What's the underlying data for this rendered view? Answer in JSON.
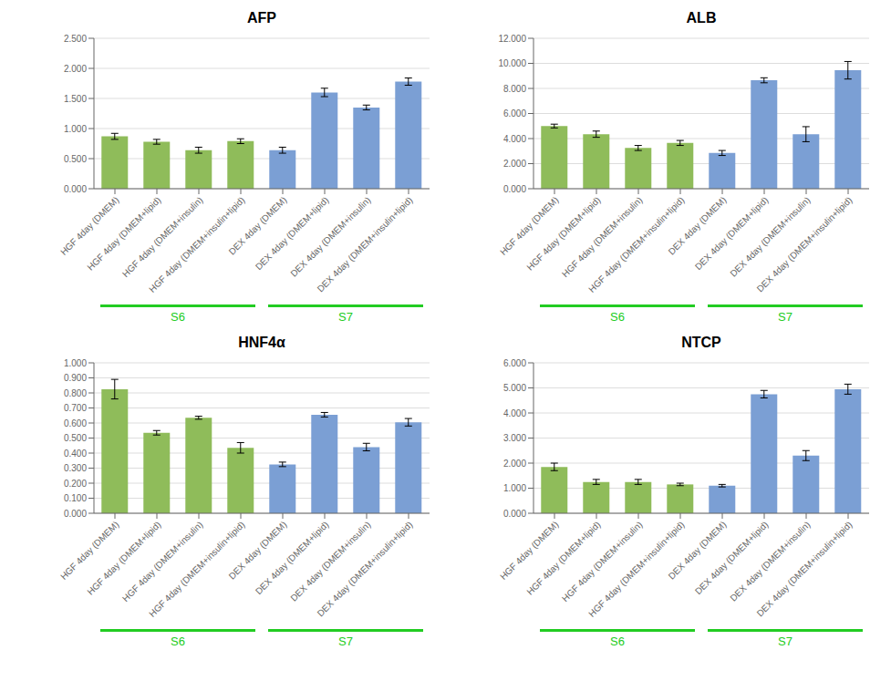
{
  "chart_data": [
    {
      "type": "bar",
      "title": "AFP",
      "categories": [
        "HGF 4day (DMEM)",
        "HGF 4day (DMEM+lipid)",
        "HGF 4day (DMEM+insulin)",
        "HGF 4day (DMEM+insulin+lipid)",
        "DEX 4day (DMEM)",
        "DEX 4day (DMEM+lipid)",
        "DEX 4day (DMEM+insulin)",
        "DEX 4day (DMEM+insulin+lipid)"
      ],
      "values": [
        0.87,
        0.78,
        0.64,
        0.79,
        0.64,
        1.6,
        1.35,
        1.78
      ],
      "errors": [
        0.05,
        0.04,
        0.05,
        0.04,
        0.05,
        0.07,
        0.04,
        0.06
      ],
      "colors": [
        "#8fbc5a",
        "#8fbc5a",
        "#8fbc5a",
        "#8fbc5a",
        "#7b9fd4",
        "#7b9fd4",
        "#7b9fd4",
        "#7b9fd4"
      ],
      "ylim": [
        0,
        2.5
      ],
      "yticks": [
        {
          "value": 0,
          "label": "0.000"
        },
        {
          "value": 0.5,
          "label": "0.500"
        },
        {
          "value": 1,
          "label": "1.000"
        },
        {
          "value": 1.5,
          "label": "1.500"
        },
        {
          "value": 2,
          "label": "2.000"
        },
        {
          "value": 2.5,
          "label": "2.500"
        }
      ],
      "grid": true,
      "annotations": [
        {
          "text": "S6",
          "color": "#22cc22"
        },
        {
          "text": "S7",
          "color": "#22cc22"
        }
      ]
    },
    {
      "type": "bar",
      "title": "ALB",
      "categories": [
        "HGF 4day (DMEM)",
        "HGF 4day (DMEM+lipid)",
        "HGF 4day (DMEM+insulin)",
        "HGF 4day (DMEM+insulin+lipid)",
        "DEX 4day (DMEM)",
        "DEX 4day (DMEM+lipid)",
        "DEX 4day (DMEM+insulin)",
        "DEX 4day (DMEM+insulin+lipid)"
      ],
      "values": [
        5.0,
        4.35,
        3.25,
        3.65,
        2.85,
        8.65,
        4.35,
        9.45
      ],
      "errors": [
        0.15,
        0.25,
        0.2,
        0.2,
        0.2,
        0.2,
        0.6,
        0.7
      ],
      "colors": [
        "#8fbc5a",
        "#8fbc5a",
        "#8fbc5a",
        "#8fbc5a",
        "#7b9fd4",
        "#7b9fd4",
        "#7b9fd4",
        "#7b9fd4"
      ],
      "ylim": [
        0,
        12.0
      ],
      "yticks": [
        {
          "value": 0,
          "label": "0.000"
        },
        {
          "value": 2,
          "label": "2.000"
        },
        {
          "value": 4,
          "label": "4.000"
        },
        {
          "value": 6,
          "label": "6.000"
        },
        {
          "value": 8,
          "label": "8.000"
        },
        {
          "value": 10,
          "label": "10.000"
        },
        {
          "value": 12,
          "label": "12.000"
        }
      ],
      "grid": true,
      "annotations": [
        {
          "text": "S6",
          "color": "#22cc22"
        },
        {
          "text": "S7",
          "color": "#22cc22"
        }
      ]
    },
    {
      "type": "bar",
      "title": "HNF4α",
      "categories": [
        "HGF 4day (DMEM)",
        "HGF 4day (DMEM+lipid)",
        "HGF 4day (DMEM+insulin)",
        "HGF 4day (DMEM+insulin+lipid)",
        "DEX 4day (DMEM)",
        "DEX 4day (DMEM+lipid)",
        "DEX 4day (DMEM+insulin)",
        "DEX 4day (DMEM+insulin+lipid)"
      ],
      "values": [
        0.825,
        0.535,
        0.635,
        0.435,
        0.325,
        0.655,
        0.44,
        0.605
      ],
      "errors": [
        0.065,
        0.015,
        0.01,
        0.035,
        0.015,
        0.015,
        0.025,
        0.025
      ],
      "colors": [
        "#8fbc5a",
        "#8fbc5a",
        "#8fbc5a",
        "#8fbc5a",
        "#7b9fd4",
        "#7b9fd4",
        "#7b9fd4",
        "#7b9fd4"
      ],
      "ylim": [
        0,
        1.0
      ],
      "yticks": [
        {
          "value": 0,
          "label": "0.000"
        },
        {
          "value": 0.1,
          "label": "0.100"
        },
        {
          "value": 0.2,
          "label": "0.200"
        },
        {
          "value": 0.3,
          "label": "0.300"
        },
        {
          "value": 0.4,
          "label": "0.400"
        },
        {
          "value": 0.5,
          "label": "0.500"
        },
        {
          "value": 0.6,
          "label": "0.600"
        },
        {
          "value": 0.7,
          "label": "0.700"
        },
        {
          "value": 0.8,
          "label": "0.800"
        },
        {
          "value": 0.9,
          "label": "0.900"
        },
        {
          "value": 1,
          "label": "1.000"
        }
      ],
      "grid": true,
      "annotations": [
        {
          "text": "S6",
          "color": "#22cc22"
        },
        {
          "text": "S7",
          "color": "#22cc22"
        }
      ]
    },
    {
      "type": "bar",
      "title": "NTCP",
      "categories": [
        "HGF 4day (DMEM)",
        "HGF 4day (DMEM+lipid)",
        "HGF 4day (DMEM+insulin)",
        "HGF 4day (DMEM+insulin+lipid)",
        "DEX 4day (DMEM)",
        "DEX 4day (DMEM+lipid)",
        "DEX 4day (DMEM+insulin)",
        "DEX 4day (DMEM+insulin+lipid)"
      ],
      "values": [
        1.85,
        1.25,
        1.25,
        1.15,
        1.1,
        4.75,
        2.3,
        4.95
      ],
      "errors": [
        0.15,
        0.1,
        0.1,
        0.05,
        0.05,
        0.15,
        0.2,
        0.2
      ],
      "colors": [
        "#8fbc5a",
        "#8fbc5a",
        "#8fbc5a",
        "#8fbc5a",
        "#7b9fd4",
        "#7b9fd4",
        "#7b9fd4",
        "#7b9fd4"
      ],
      "ylim": [
        0,
        6.0
      ],
      "yticks": [
        {
          "value": 0,
          "label": "0.000"
        },
        {
          "value": 1,
          "label": "1.000"
        },
        {
          "value": 2,
          "label": "2.000"
        },
        {
          "value": 3,
          "label": "3.000"
        },
        {
          "value": 4,
          "label": "4.000"
        },
        {
          "value": 5,
          "label": "5.000"
        },
        {
          "value": 6,
          "label": "6.000"
        }
      ],
      "grid": true,
      "annotations": [
        {
          "text": "S6",
          "color": "#22cc22"
        },
        {
          "text": "S7",
          "color": "#22cc22"
        }
      ]
    }
  ]
}
